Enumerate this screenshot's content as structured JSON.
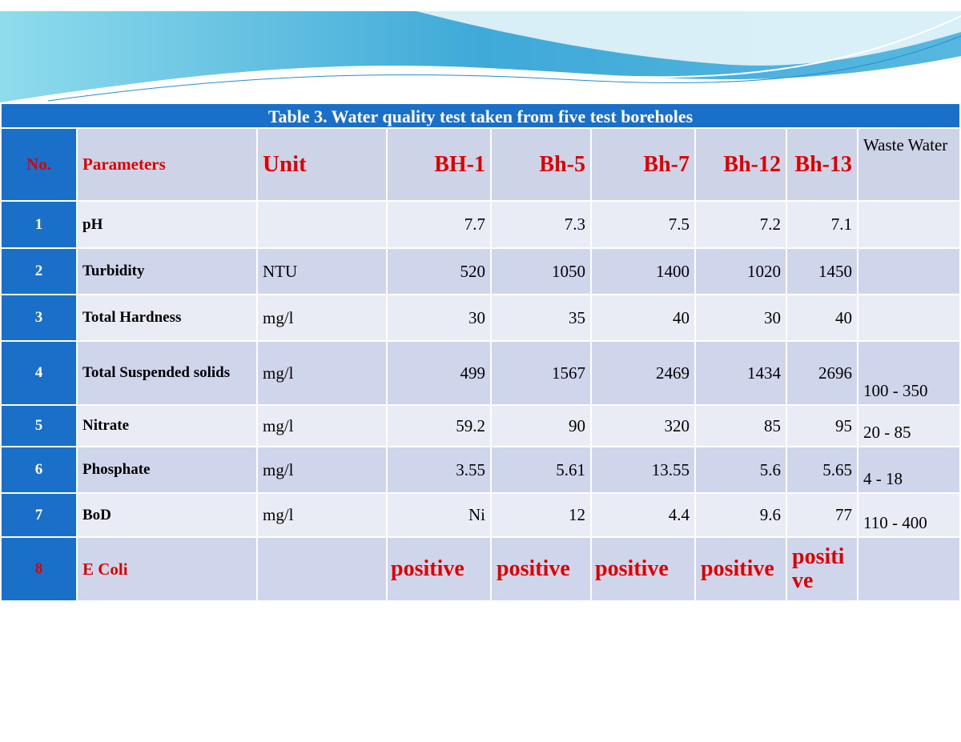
{
  "title": "Table 3. Water quality test taken from five test boreholes",
  "header": [
    "No.",
    "Parameters",
    "Unit",
    "BH-1",
    "Bh-5",
    "Bh-7",
    "Bh-12",
    "Bh-13",
    "Waste Water"
  ],
  "rows": [
    [
      "1",
      "pH",
      null,
      "7.7",
      "7.3",
      "7.5",
      "7.2",
      "7.1",
      null
    ],
    [
      "2",
      "Turbidity",
      "NTU",
      "520",
      "1050",
      "1400",
      "1020",
      "1450",
      null
    ],
    [
      "3",
      "Total Hardness",
      "mg/l",
      "30",
      "35",
      "40",
      "30",
      "40",
      null
    ],
    [
      "4",
      "Total Suspended solids",
      "mg/l",
      "499",
      "1567",
      "2469",
      "1434",
      "2696",
      "100 - 350"
    ],
    [
      "5",
      "Nitrate",
      "mg/l",
      "59.2",
      "90",
      "320",
      "85",
      "95",
      "20 - 85"
    ],
    [
      "6",
      "Phosphate",
      "mg/l",
      "3.55",
      "5.61",
      "13.55",
      "5.6",
      "5.65",
      "4 - 18"
    ],
    [
      "7",
      "BoD",
      "mg/l",
      "Ni",
      "12",
      "4.4",
      "9.6",
      "77",
      "110 - 400"
    ],
    [
      "8",
      "E Coli",
      null,
      "positive",
      "positive",
      "positive",
      "positive",
      "positive",
      null
    ]
  ]
}
